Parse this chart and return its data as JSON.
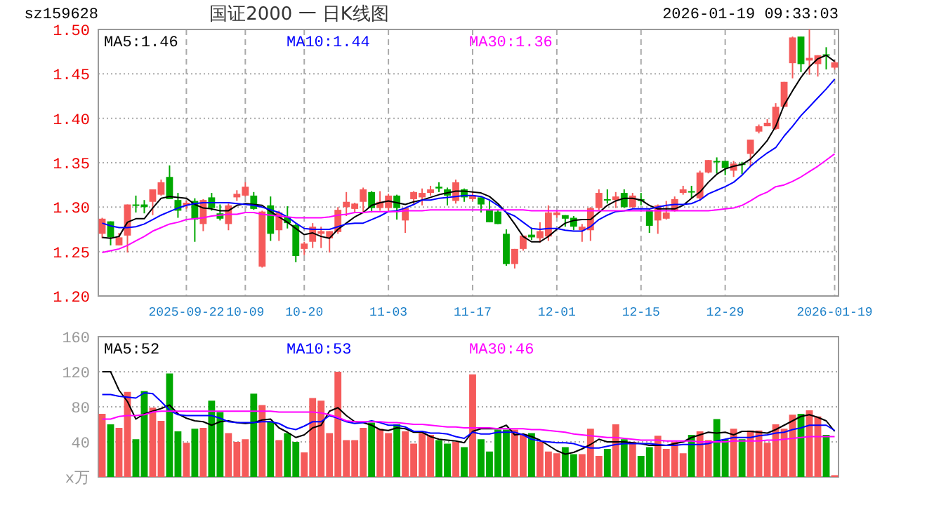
{
  "chart_data": [
    {
      "type": "candlestick",
      "title": "国证2000 一 日K线图",
      "annotations": [
        "sz159628",
        "2026-01-19 09:33:03"
      ],
      "categories": [
        null,
        null,
        null,
        null,
        null,
        null,
        null,
        null,
        null,
        null,
        "2025-09-22",
        null,
        null,
        null,
        null,
        null,
        null,
        "10-09",
        null,
        null,
        null,
        null,
        null,
        null,
        "10-20",
        null,
        null,
        null,
        null,
        null,
        null,
        null,
        null,
        null,
        "11-03",
        null,
        null,
        null,
        null,
        null,
        null,
        null,
        null,
        null,
        "11-17",
        null,
        null,
        null,
        null,
        null,
        null,
        null,
        null,
        null,
        "12-01",
        null,
        null,
        null,
        null,
        null,
        null,
        null,
        null,
        null,
        "12-15",
        null,
        null,
        null,
        null,
        null,
        null,
        null,
        null,
        null,
        "12-29",
        null,
        null,
        null,
        null,
        null,
        null,
        null,
        null,
        null,
        null,
        null,
        null,
        "2026-01-19"
      ],
      "ohlc": [
        [
          1.27,
          1.288,
          1.265,
          1.287
        ],
        [
          1.284,
          1.284,
          1.257,
          1.266
        ],
        [
          1.257,
          1.271,
          1.257,
          1.266
        ],
        [
          1.268,
          1.303,
          1.249,
          1.303
        ],
        [
          1.303,
          1.313,
          1.294,
          1.302
        ],
        [
          1.303,
          1.308,
          1.293,
          1.3
        ],
        [
          1.306,
          1.32,
          1.291,
          1.32
        ],
        [
          1.314,
          1.331,
          1.313,
          1.328
        ],
        [
          1.334,
          1.347,
          1.309,
          1.309
        ],
        [
          1.308,
          1.316,
          1.288,
          1.296
        ],
        [
          1.302,
          1.307,
          1.298,
          1.305
        ],
        [
          1.307,
          1.31,
          1.261,
          1.286
        ],
        [
          1.281,
          1.309,
          1.273,
          1.308
        ],
        [
          1.311,
          1.316,
          1.296,
          1.299
        ],
        [
          1.293,
          1.303,
          1.285,
          1.287
        ],
        [
          1.281,
          1.304,
          1.274,
          1.302
        ],
        [
          1.311,
          1.319,
          1.307,
          1.315
        ],
        [
          1.313,
          1.328,
          1.312,
          1.323
        ],
        [
          1.313,
          1.317,
          1.297,
          1.298
        ],
        [
          1.233,
          1.296,
          1.232,
          1.295
        ],
        [
          1.302,
          1.312,
          1.262,
          1.27
        ],
        [
          1.274,
          1.296,
          1.262,
          1.294
        ],
        [
          1.289,
          1.301,
          1.276,
          1.282
        ],
        [
          1.28,
          1.281,
          1.238,
          1.245
        ],
        [
          1.253,
          1.261,
          1.246,
          1.259
        ],
        [
          1.261,
          1.282,
          1.254,
          1.278
        ],
        [
          1.27,
          1.278,
          1.254,
          1.273
        ],
        [
          1.265,
          1.273,
          1.249,
          1.273
        ],
        [
          1.272,
          1.3,
          1.27,
          1.297
        ],
        [
          1.3,
          1.317,
          1.29,
          1.306
        ],
        [
          1.298,
          1.305,
          1.294,
          1.304
        ],
        [
          1.306,
          1.322,
          1.293,
          1.32
        ],
        [
          1.317,
          1.318,
          1.294,
          1.299
        ],
        [
          1.299,
          1.318,
          1.296,
          1.306
        ],
        [
          1.299,
          1.315,
          1.296,
          1.313
        ],
        [
          1.313,
          1.314,
          1.286,
          1.299
        ],
        [
          1.285,
          1.3,
          1.271,
          1.299
        ],
        [
          1.309,
          1.318,
          1.302,
          1.317
        ],
        [
          1.311,
          1.321,
          1.302,
          1.316
        ],
        [
          1.316,
          1.324,
          1.313,
          1.32
        ],
        [
          1.323,
          1.328,
          1.317,
          1.321
        ],
        [
          1.32,
          1.322,
          1.302,
          1.313
        ],
        [
          1.307,
          1.331,
          1.304,
          1.328
        ],
        [
          1.32,
          1.321,
          1.306,
          1.311
        ],
        [
          1.309,
          1.317,
          1.307,
          1.313
        ],
        [
          1.311,
          1.311,
          1.294,
          1.303
        ],
        [
          1.297,
          1.307,
          1.283,
          1.283
        ],
        [
          1.295,
          1.297,
          1.281,
          1.281
        ],
        [
          1.27,
          1.275,
          1.234,
          1.236
        ],
        [
          1.236,
          1.253,
          1.231,
          1.253
        ],
        [
          1.253,
          1.268,
          1.251,
          1.268
        ],
        [
          1.269,
          1.277,
          1.263,
          1.266
        ],
        [
          1.265,
          1.283,
          1.26,
          1.273
        ],
        [
          1.267,
          1.302,
          1.262,
          1.294
        ],
        [
          1.291,
          1.296,
          1.288,
          1.294
        ],
        [
          1.291,
          1.291,
          1.278,
          1.287
        ],
        [
          1.288,
          1.29,
          1.274,
          1.278
        ],
        [
          1.274,
          1.281,
          1.261,
          1.278
        ],
        [
          1.274,
          1.3,
          1.262,
          1.299
        ],
        [
          1.299,
          1.32,
          1.297,
          1.316
        ],
        [
          1.309,
          1.32,
          1.304,
          1.308
        ],
        [
          1.308,
          1.317,
          1.299,
          1.312
        ],
        [
          1.316,
          1.32,
          1.299,
          1.3
        ],
        [
          1.3,
          1.316,
          1.299,
          1.313
        ],
        [
          1.309,
          1.316,
          1.302,
          1.307
        ],
        [
          1.297,
          1.298,
          1.271,
          1.279
        ],
        [
          1.285,
          1.303,
          1.27,
          1.302
        ],
        [
          1.287,
          1.307,
          1.286,
          1.294
        ],
        [
          1.296,
          1.312,
          1.295,
          1.309
        ],
        [
          1.316,
          1.324,
          1.314,
          1.32
        ],
        [
          1.318,
          1.324,
          1.31,
          1.317
        ],
        [
          1.31,
          1.341,
          1.307,
          1.339
        ],
        [
          1.339,
          1.353,
          1.338,
          1.353
        ],
        [
          1.352,
          1.356,
          1.338,
          1.351
        ],
        [
          1.352,
          1.352,
          1.336,
          1.344
        ],
        [
          1.341,
          1.352,
          1.334,
          1.349
        ],
        [
          1.349,
          1.351,
          1.337,
          1.348
        ],
        [
          1.36,
          1.376,
          1.346,
          1.376
        ],
        [
          1.385,
          1.393,
          1.383,
          1.391
        ],
        [
          1.391,
          1.399,
          1.391,
          1.395
        ],
        [
          1.388,
          1.417,
          1.387,
          1.413
        ],
        [
          1.413,
          1.441,
          1.413,
          1.441
        ],
        [
          1.462,
          1.492,
          1.445,
          1.491
        ],
        [
          1.492,
          1.492,
          1.452,
          1.461
        ],
        [
          1.465,
          1.5,
          1.449,
          1.468
        ],
        [
          1.461,
          1.471,
          1.447,
          1.471
        ],
        [
          1.472,
          1.48,
          1.455,
          1.471
        ],
        [
          1.457,
          1.465,
          1.455,
          1.463
        ]
      ],
      "colors": [
        "#f55a5a",
        "#00a800",
        "#f55a5a",
        "#f55a5a",
        "#00a800",
        "#00a800",
        "#f55a5a",
        "#f55a5a",
        "#00a800",
        "#00a800",
        "#f55a5a",
        "#00a800",
        "#f55a5a",
        "#00a800",
        "#00a800",
        "#f55a5a",
        "#f55a5a",
        "#f55a5a",
        "#00a800",
        "#f55a5a",
        "#00a800",
        "#f55a5a",
        "#00a800",
        "#00a800",
        "#f55a5a",
        "#f55a5a",
        "#f55a5a",
        "#f55a5a",
        "#f55a5a",
        "#f55a5a",
        "#f55a5a",
        "#f55a5a",
        "#00a800",
        "#f55a5a",
        "#f55a5a",
        "#00a800",
        "#f55a5a",
        "#f55a5a",
        "#f55a5a",
        "#f55a5a",
        "#00a800",
        "#00a800",
        "#f55a5a",
        "#00a800",
        "#f55a5a",
        "#00a800",
        "#00a800",
        "#00a800",
        "#00a800",
        "#f55a5a",
        "#f55a5a",
        "#00a800",
        "#f55a5a",
        "#f55a5a",
        "#f55a5a",
        "#00a800",
        "#00a800",
        "#f55a5a",
        "#f55a5a",
        "#f55a5a",
        "#00a800",
        "#f55a5a",
        "#00a800",
        "#f55a5a",
        "#00a800",
        "#00a800",
        "#f55a5a",
        "#f55a5a",
        "#f55a5a",
        "#f55a5a",
        "#00a800",
        "#f55a5a",
        "#f55a5a",
        "#00a800",
        "#00a800",
        "#f55a5a",
        "#00a800",
        "#f55a5a",
        "#f55a5a",
        "#f55a5a",
        "#f55a5a",
        "#f55a5a",
        "#f55a5a",
        "#00a800",
        "#f55a5a",
        "#f55a5a",
        "#00a800",
        "#f55a5a"
      ],
      "series": [
        {
          "type": "line",
          "name": "MA5:1.46",
          "color": "#000000",
          "values": [
            1.266,
            1.265,
            1.267,
            1.283,
            1.287,
            1.287,
            1.299,
            1.31,
            1.312,
            1.311,
            1.31,
            1.303,
            1.299,
            1.298,
            1.296,
            1.296,
            1.302,
            1.304,
            1.303,
            1.302,
            1.295,
            1.289,
            1.283,
            1.276,
            1.269,
            1.271,
            1.267,
            1.265,
            1.275,
            1.282,
            1.289,
            1.294,
            1.302,
            1.305,
            1.307,
            1.305,
            1.303,
            1.306,
            1.308,
            1.311,
            1.314,
            1.316,
            1.318,
            1.318,
            1.317,
            1.316,
            1.312,
            1.304,
            1.294,
            1.281,
            1.267,
            1.261,
            1.261,
            1.267,
            1.275,
            1.282,
            1.285,
            1.286,
            1.286,
            1.294,
            1.302,
            1.307,
            1.31,
            1.31,
            1.308,
            1.302,
            1.298,
            1.298,
            1.298,
            1.302,
            1.31,
            1.317,
            1.328,
            1.337,
            1.343,
            1.346,
            1.348,
            1.354,
            1.364,
            1.375,
            1.391,
            1.415,
            1.431,
            1.446,
            1.458,
            1.467,
            1.471,
            1.464
          ]
        },
        {
          "type": "line",
          "name": "MA10:1.44",
          "color": "#0000ff",
          "values": [
            1.282,
            1.279,
            1.277,
            1.277,
            1.278,
            1.281,
            1.286,
            1.291,
            1.295,
            1.299,
            1.302,
            1.304,
            1.305,
            1.305,
            1.305,
            1.305,
            1.304,
            1.303,
            1.302,
            1.3,
            1.297,
            1.294,
            1.289,
            1.282,
            1.276,
            1.275,
            1.275,
            1.275,
            1.278,
            1.281,
            1.282,
            1.282,
            1.286,
            1.29,
            1.295,
            1.296,
            1.299,
            1.303,
            1.308,
            1.308,
            1.31,
            1.311,
            1.312,
            1.313,
            1.313,
            1.312,
            1.308,
            1.302,
            1.294,
            1.29,
            1.283,
            1.276,
            1.275,
            1.276,
            1.276,
            1.274,
            1.273,
            1.273,
            1.278,
            1.286,
            1.291,
            1.295,
            1.296,
            1.298,
            1.298,
            1.298,
            1.3,
            1.302,
            1.303,
            1.303,
            1.304,
            1.308,
            1.315,
            1.319,
            1.323,
            1.328,
            1.336,
            1.346,
            1.354,
            1.361,
            1.367,
            1.38,
            1.391,
            1.403,
            1.413,
            1.423,
            1.433,
            1.444
          ]
        },
        {
          "type": "line",
          "name": "MA30:1.36",
          "color": "#ff00ff",
          "values": [
            1.249,
            1.251,
            1.253,
            1.257,
            1.262,
            1.267,
            1.273,
            1.277,
            1.281,
            1.283,
            1.286,
            1.287,
            1.288,
            1.29,
            1.291,
            1.292,
            1.292,
            1.294,
            1.294,
            1.292,
            1.291,
            1.29,
            1.289,
            1.288,
            1.288,
            1.288,
            1.288,
            1.289,
            1.291,
            1.292,
            1.294,
            1.294,
            1.295,
            1.295,
            1.295,
            1.295,
            1.296,
            1.296,
            1.296,
            1.297,
            1.297,
            1.297,
            1.297,
            1.297,
            1.297,
            1.297,
            1.297,
            1.297,
            1.297,
            1.297,
            1.297,
            1.296,
            1.296,
            1.296,
            1.296,
            1.296,
            1.296,
            1.296,
            1.296,
            1.296,
            1.296,
            1.296,
            1.296,
            1.296,
            1.296,
            1.296,
            1.296,
            1.296,
            1.296,
            1.296,
            1.296,
            1.296,
            1.296,
            1.297,
            1.298,
            1.299,
            1.302,
            1.307,
            1.313,
            1.317,
            1.323,
            1.325,
            1.329,
            1.334,
            1.34,
            1.346,
            1.353,
            1.36
          ]
        }
      ],
      "ylim": [
        1.2,
        1.5
      ],
      "yticks": [
        {
          "value": 1.2,
          "label": "1.20"
        },
        {
          "value": 1.25,
          "label": "1.25"
        },
        {
          "value": 1.3,
          "label": "1.30"
        },
        {
          "value": 1.35,
          "label": "1.35"
        },
        {
          "value": 1.4,
          "label": "1.40"
        },
        {
          "value": 1.45,
          "label": "1.45"
        },
        {
          "value": 1.5,
          "label": "1.50"
        }
      ],
      "grid": true,
      "legend": "top"
    },
    {
      "type": "bar",
      "categories": [
        null,
        null,
        null,
        null,
        null,
        null,
        null,
        null,
        null,
        null,
        null,
        null,
        null,
        null,
        null,
        null,
        null,
        null,
        null,
        null,
        null,
        null,
        null,
        null,
        null,
        null,
        null,
        null,
        null,
        null,
        null,
        null,
        null,
        null,
        null,
        null,
        null,
        null,
        null,
        null,
        null,
        null,
        null,
        null,
        null,
        null,
        null,
        null,
        null,
        null,
        null,
        null,
        null,
        null,
        null,
        null,
        null,
        null,
        null,
        null,
        null,
        null,
        null,
        null,
        null,
        null,
        null,
        null,
        null,
        null,
        null,
        null,
        null,
        null,
        null,
        null,
        null,
        null,
        null,
        null,
        null,
        null,
        null,
        null,
        null,
        null,
        null,
        null
      ],
      "values": [
        72,
        60,
        56,
        97,
        43,
        98,
        79,
        64,
        118,
        52,
        39,
        55,
        56,
        87,
        74,
        50,
        40,
        43,
        95,
        82,
        63,
        42,
        50,
        40,
        28,
        90,
        87,
        50,
        120,
        42,
        42,
        56,
        62,
        55,
        50,
        60,
        52,
        38,
        50,
        48,
        42,
        38,
        40,
        34,
        117,
        43,
        29,
        54,
        54,
        54,
        48,
        50,
        40,
        29,
        27,
        34,
        26,
        26,
        55,
        24,
        32,
        60,
        43,
        40,
        24,
        34,
        47,
        32,
        40,
        27,
        48,
        52,
        42,
        66,
        43,
        55,
        43,
        53,
        53,
        39,
        60,
        55,
        71,
        72,
        76,
        69,
        48,
        2
      ],
      "colors": [
        "#f55a5a",
        "#00a800",
        "#f55a5a",
        "#f55a5a",
        "#00a800",
        "#00a800",
        "#f55a5a",
        "#f55a5a",
        "#00a800",
        "#00a800",
        "#f55a5a",
        "#00a800",
        "#f55a5a",
        "#00a800",
        "#00a800",
        "#f55a5a",
        "#f55a5a",
        "#f55a5a",
        "#00a800",
        "#f55a5a",
        "#00a800",
        "#f55a5a",
        "#00a800",
        "#00a800",
        "#f55a5a",
        "#f55a5a",
        "#f55a5a",
        "#f55a5a",
        "#f55a5a",
        "#f55a5a",
        "#f55a5a",
        "#f55a5a",
        "#00a800",
        "#f55a5a",
        "#f55a5a",
        "#00a800",
        "#f55a5a",
        "#f55a5a",
        "#f55a5a",
        "#f55a5a",
        "#00a800",
        "#00a800",
        "#f55a5a",
        "#00a800",
        "#f55a5a",
        "#00a800",
        "#00a800",
        "#00a800",
        "#00a800",
        "#f55a5a",
        "#f55a5a",
        "#00a800",
        "#f55a5a",
        "#f55a5a",
        "#f55a5a",
        "#00a800",
        "#00a800",
        "#f55a5a",
        "#f55a5a",
        "#f55a5a",
        "#00a800",
        "#f55a5a",
        "#00a800",
        "#f55a5a",
        "#00a800",
        "#00a800",
        "#f55a5a",
        "#f55a5a",
        "#f55a5a",
        "#f55a5a",
        "#00a800",
        "#f55a5a",
        "#f55a5a",
        "#00a800",
        "#00a800",
        "#f55a5a",
        "#00a800",
        "#f55a5a",
        "#f55a5a",
        "#f55a5a",
        "#f55a5a",
        "#f55a5a",
        "#f55a5a",
        "#00a800",
        "#f55a5a",
        "#f55a5a",
        "#00a800",
        "#f55a5a"
      ],
      "series": [
        {
          "type": "line",
          "name": "MA5:52",
          "color": "#000000",
          "values": [
            120,
            120,
            99,
            86,
            66,
            72,
            75,
            78,
            82,
            72,
            67,
            64,
            63,
            59,
            63,
            64,
            62,
            61,
            62,
            65,
            66,
            56,
            51,
            45,
            48,
            56,
            59,
            75,
            79,
            70,
            63,
            62,
            59,
            54,
            53,
            56,
            55,
            51,
            51,
            46,
            43,
            42,
            41,
            39,
            52,
            55,
            55,
            55,
            59,
            48,
            49,
            46,
            42,
            36,
            30,
            26,
            28,
            32,
            37,
            43,
            40,
            40,
            40,
            39,
            38,
            36,
            36,
            36,
            38,
            40,
            45,
            48,
            51,
            50,
            51,
            48,
            52,
            52,
            51,
            50,
            54,
            59,
            64,
            69,
            71,
            68,
            64,
            52
          ]
        },
        {
          "type": "line",
          "name": "MA10:53",
          "color": "#0000ff",
          "values": [
            94,
            94,
            92,
            91,
            90,
            96,
            95,
            86,
            76,
            71,
            70,
            70,
            70,
            70,
            67,
            63,
            62,
            62,
            62,
            63,
            63,
            61,
            56,
            54,
            58,
            63,
            63,
            70,
            67,
            63,
            61,
            62,
            64,
            62,
            59,
            59,
            57,
            52,
            52,
            50,
            50,
            49,
            46,
            44,
            51,
            49,
            49,
            51,
            51,
            51,
            48,
            43,
            41,
            40,
            39,
            39,
            38,
            35,
            33,
            33,
            35,
            37,
            38,
            38,
            38,
            38,
            37,
            36,
            36,
            37,
            37,
            37,
            38,
            41,
            43,
            45,
            45,
            45,
            47,
            48,
            50,
            51,
            54,
            56,
            59,
            59,
            59,
            53
          ]
        },
        {
          "type": "line",
          "name": "MA30:46",
          "color": "#ff00ff",
          "values": [
            66,
            66,
            69,
            70,
            70,
            71,
            74,
            75,
            75,
            75,
            75,
            75,
            75,
            75,
            75,
            75,
            75,
            75,
            75,
            75,
            75,
            74,
            74,
            74,
            74,
            74,
            73,
            71,
            68,
            64,
            63,
            63,
            63,
            63,
            62,
            62,
            61,
            60,
            60,
            59,
            58,
            57,
            57,
            56,
            56,
            56,
            56,
            55,
            55,
            55,
            55,
            54,
            54,
            53,
            52,
            51,
            49,
            48,
            47,
            46,
            45,
            45,
            44,
            43,
            42,
            42,
            42,
            41,
            41,
            41,
            41,
            40,
            40,
            40,
            40,
            41,
            41,
            41,
            41,
            42,
            42,
            43,
            44,
            45,
            46,
            46,
            46,
            46
          ]
        }
      ],
      "ylim": [
        0,
        160
      ],
      "yticks": [
        {
          "value": 0,
          "label": "x万"
        },
        40,
        80,
        120,
        160
      ],
      "tick_labels": "y",
      "grid": "y",
      "legend": "top"
    }
  ]
}
